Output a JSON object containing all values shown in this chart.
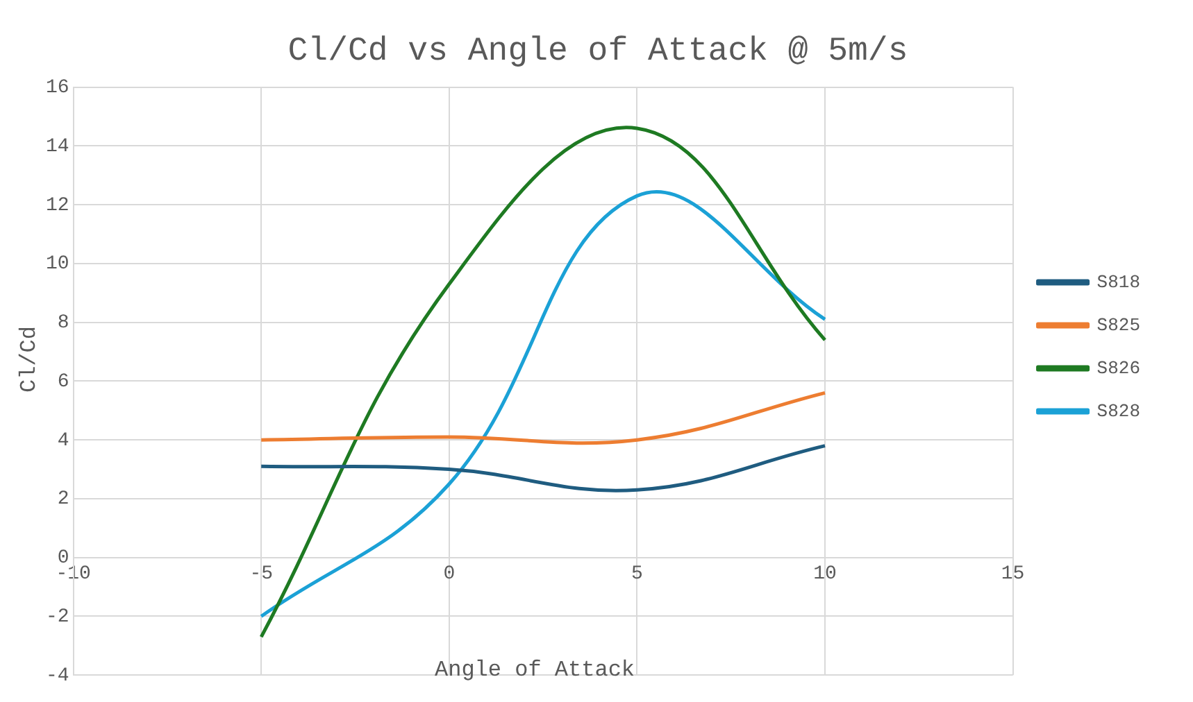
{
  "chart_data": {
    "type": "line",
    "title": "Cl/Cd vs Angle of Attack @ 5m/s",
    "xlabel": "Angle of Attack",
    "ylabel": "Cl/Cd",
    "x": [
      -5,
      0,
      5,
      10
    ],
    "series": [
      {
        "name": "S818",
        "color": "#1f5c80",
        "values": [
          3.1,
          3.0,
          2.3,
          3.8
        ]
      },
      {
        "name": "S825",
        "color": "#ed7d31",
        "values": [
          4.0,
          4.1,
          4.0,
          5.6
        ]
      },
      {
        "name": "S826",
        "color": "#1e7a22",
        "values": [
          -2.7,
          9.3,
          14.6,
          7.4
        ]
      },
      {
        "name": "S828",
        "color": "#1ba1d6",
        "values": [
          -2.0,
          2.5,
          12.3,
          8.1
        ]
      }
    ],
    "xlim": [
      -10,
      15
    ],
    "xticks": [
      -10,
      -5,
      0,
      5,
      10,
      15
    ],
    "ylim": [
      -4,
      16
    ],
    "yticks": [
      -4,
      -2,
      0,
      2,
      4,
      6,
      8,
      10,
      12,
      14,
      16
    ],
    "grid": true,
    "legend": "right",
    "marker": "none",
    "line_style": "solid"
  }
}
